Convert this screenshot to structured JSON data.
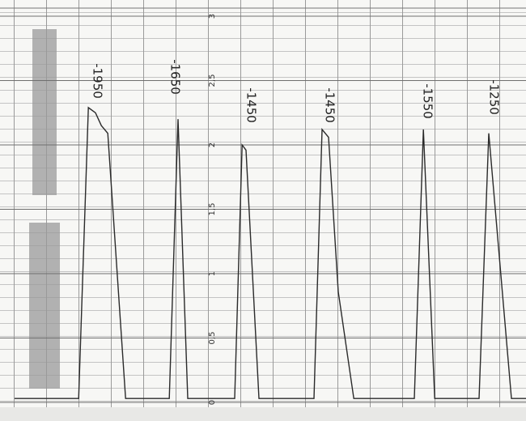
{
  "chart_data": {
    "type": "line",
    "x": [
      0,
      1.98,
      2.28,
      2.5,
      2.68,
      2.88,
      3.43,
      4.78,
      5.05,
      5.35,
      6.8,
      7.03,
      7.15,
      7.55,
      9.25,
      9.5,
      9.7,
      10.0,
      10.48,
      12.35,
      12.63,
      12.98,
      14.35,
      14.65,
      15.35,
      15.8
    ],
    "values": [
      0.03,
      0.03,
      2.29,
      2.25,
      2.15,
      2.09,
      0.03,
      0.03,
      2.2,
      0.03,
      0.03,
      2.0,
      1.96,
      0.03,
      0.03,
      2.12,
      2.06,
      0.86,
      0.03,
      0.03,
      2.12,
      0.03,
      0.03,
      2.09,
      0.03,
      0.03
    ],
    "color": "#2a2a2a",
    "xlim": [
      0,
      15.8
    ],
    "ylim": [
      0,
      3
    ],
    "yticks": [
      0,
      {
        "value": 0.5,
        "label": "0,5"
      },
      1,
      {
        "value": 1.5,
        "label": "1,5"
      },
      2,
      {
        "value": 2.5,
        "label": "2,5"
      },
      3
    ],
    "grid": true,
    "annotations": [
      "-1950",
      "-1650",
      "-1450",
      "-1450",
      "-1550",
      "-1250"
    ]
  }
}
